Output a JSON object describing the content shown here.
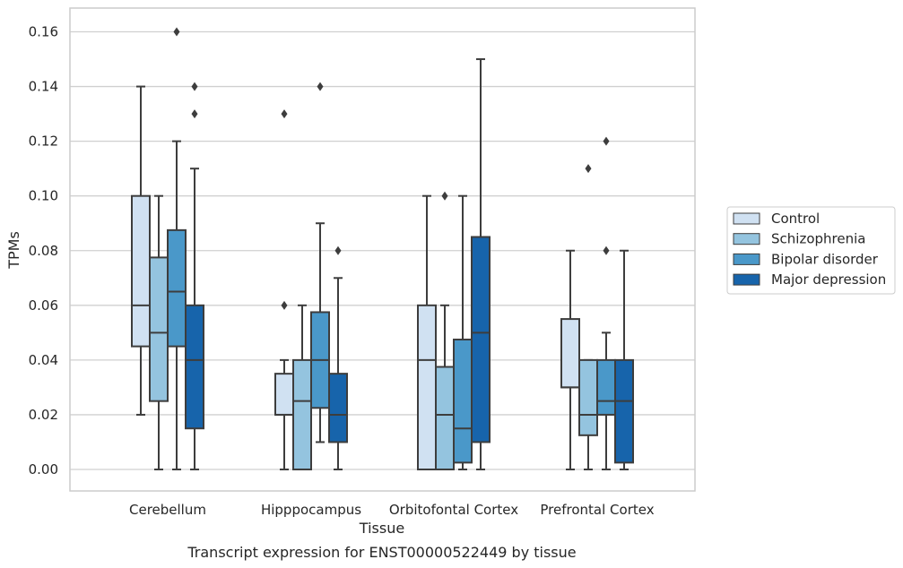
{
  "chart_data": {
    "type": "boxplot",
    "title": "",
    "caption": "Transcript expression for ENST00000522449 by tissue",
    "xlabel": "Tissue",
    "ylabel": "TPMs",
    "ylim": [
      -0.008,
      0.168
    ],
    "yticks": [
      0.0,
      0.02,
      0.04,
      0.06,
      0.08,
      0.1,
      0.12,
      0.14,
      0.16
    ],
    "ytick_labels": [
      "0.00",
      "0.02",
      "0.04",
      "0.06",
      "0.08",
      "0.10",
      "0.12",
      "0.14",
      "0.16"
    ],
    "grid": "horizontal",
    "legend_position": "right",
    "categories": [
      "Cerebellum",
      "Hipppocampus",
      "Orbitofontal Cortex",
      "Prefrontal Cortex"
    ],
    "series": [
      {
        "name": "Control",
        "color": "#d0e1f2",
        "boxes": [
          {
            "whislo": 0.02,
            "q1": 0.045,
            "med": 0.06,
            "q3": 0.1,
            "whishi": 0.14,
            "fliers": []
          },
          {
            "whislo": 0.0,
            "q1": 0.02,
            "med": 0.02,
            "q3": 0.035,
            "whishi": 0.04,
            "fliers": [
              0.06,
              0.13
            ]
          },
          {
            "whislo": 0.0,
            "q1": 0.0,
            "med": 0.04,
            "q3": 0.06,
            "whishi": 0.1,
            "fliers": []
          },
          {
            "whislo": 0.0,
            "q1": 0.03,
            "med": 0.03,
            "q3": 0.055,
            "whishi": 0.08,
            "fliers": []
          }
        ]
      },
      {
        "name": "Schizophrenia",
        "color": "#94c4df",
        "boxes": [
          {
            "whislo": 0.0,
            "q1": 0.025,
            "med": 0.05,
            "q3": 0.0775,
            "whishi": 0.1,
            "fliers": []
          },
          {
            "whislo": 0.0,
            "q1": 0.0,
            "med": 0.025,
            "q3": 0.04,
            "whishi": 0.06,
            "fliers": []
          },
          {
            "whislo": 0.0,
            "q1": 0.0,
            "med": 0.02,
            "q3": 0.0375,
            "whishi": 0.06,
            "fliers": [
              0.1
            ]
          },
          {
            "whislo": 0.0,
            "q1": 0.0125,
            "med": 0.02,
            "q3": 0.04,
            "whishi": 0.04,
            "fliers": [
              0.11
            ]
          }
        ]
      },
      {
        "name": "Bipolar disorder",
        "color": "#4a98c9",
        "boxes": [
          {
            "whislo": 0.0,
            "q1": 0.045,
            "med": 0.065,
            "q3": 0.0875,
            "whishi": 0.12,
            "fliers": [
              0.16
            ]
          },
          {
            "whislo": 0.01,
            "q1": 0.0225,
            "med": 0.04,
            "q3": 0.0575,
            "whishi": 0.09,
            "fliers": [
              0.14
            ]
          },
          {
            "whislo": 0.0,
            "q1": 0.0025,
            "med": 0.015,
            "q3": 0.0475,
            "whishi": 0.1,
            "fliers": []
          },
          {
            "whislo": 0.0,
            "q1": 0.02,
            "med": 0.025,
            "q3": 0.04,
            "whishi": 0.05,
            "fliers": [
              0.08,
              0.12
            ]
          }
        ]
      },
      {
        "name": "Major depression",
        "color": "#1764ab",
        "boxes": [
          {
            "whislo": 0.0,
            "q1": 0.015,
            "med": 0.04,
            "q3": 0.06,
            "whishi": 0.11,
            "fliers": [
              0.13,
              0.14
            ]
          },
          {
            "whislo": 0.0,
            "q1": 0.01,
            "med": 0.02,
            "q3": 0.035,
            "whishi": 0.07,
            "fliers": [
              0.08
            ]
          },
          {
            "whislo": 0.0,
            "q1": 0.01,
            "med": 0.05,
            "q3": 0.085,
            "whishi": 0.15,
            "fliers": []
          },
          {
            "whislo": 0.0,
            "q1": 0.0025,
            "med": 0.025,
            "q3": 0.04,
            "whishi": 0.08,
            "fliers": []
          }
        ]
      }
    ]
  }
}
